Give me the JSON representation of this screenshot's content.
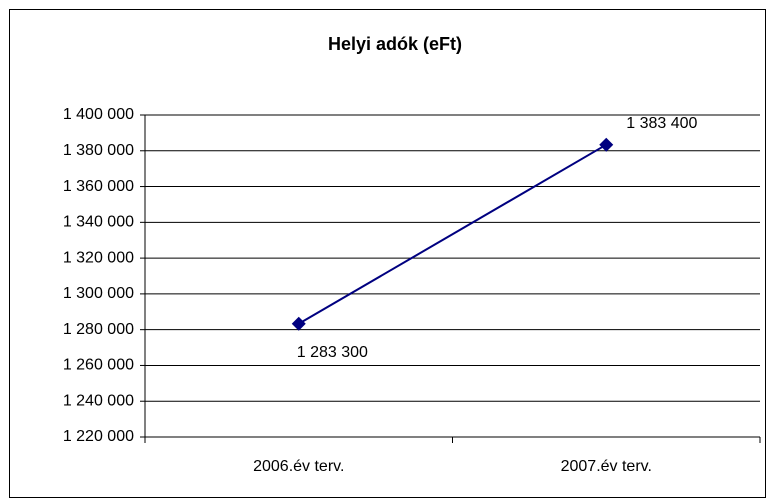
{
  "chart_data": {
    "type": "line",
    "title": "Helyi adók (eFt)",
    "categories": [
      "2006.év terv.",
      "2007.év terv."
    ],
    "series": [
      {
        "name": "Helyi adók (eFt)",
        "color": "#000080",
        "values": [
          1283300,
          1383400
        ],
        "value_labels": [
          "1 283 300",
          "1 383 400"
        ]
      }
    ],
    "ylim": [
      1220000,
      1400000
    ],
    "yticks": [
      {
        "value": 1220000,
        "label": "1 220 000"
      },
      {
        "value": 1240000,
        "label": "1 240 000"
      },
      {
        "value": 1260000,
        "label": "1 260 000"
      },
      {
        "value": 1280000,
        "label": "1 280 000"
      },
      {
        "value": 1300000,
        "label": "1 300 000"
      },
      {
        "value": 1320000,
        "label": "1 320 000"
      },
      {
        "value": 1340000,
        "label": "1 340 000"
      },
      {
        "value": 1360000,
        "label": "1 360 000"
      },
      {
        "value": 1380000,
        "label": "1 380 000"
      },
      {
        "value": 1400000,
        "label": "1 400 000"
      }
    ],
    "grid": true
  }
}
